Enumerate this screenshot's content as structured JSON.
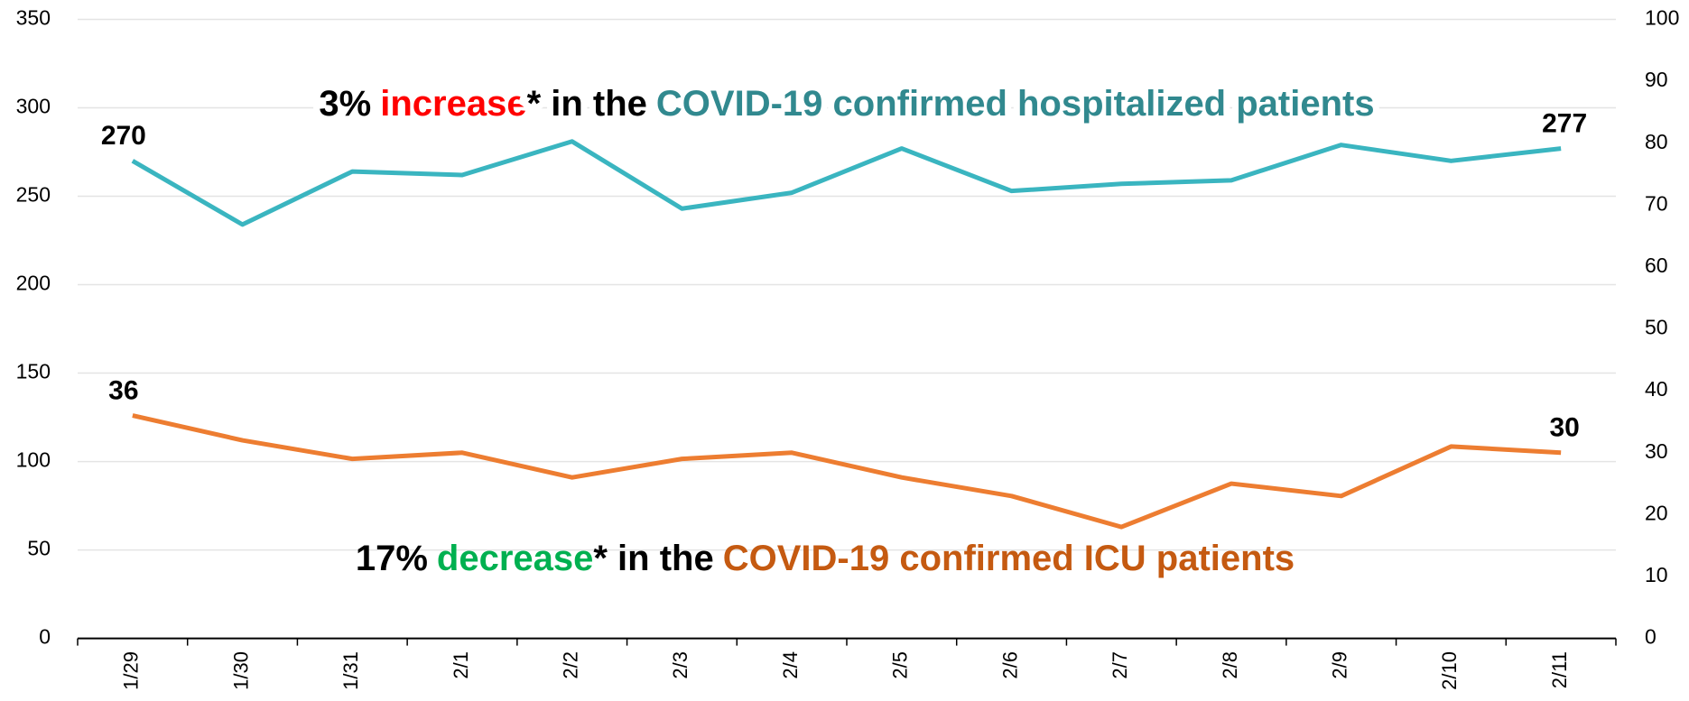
{
  "chart_data": {
    "type": "line",
    "categories": [
      "1/29",
      "1/30",
      "1/31",
      "2/1",
      "2/2",
      "2/3",
      "2/4",
      "2/5",
      "2/6",
      "2/7",
      "2/8",
      "2/9",
      "2/10",
      "2/11"
    ],
    "series": [
      {
        "name": "COVID-19 confirmed hospitalized patients",
        "color": "#3ab5c0",
        "axis": "y",
        "values": [
          270,
          234,
          264,
          262,
          281,
          243,
          252,
          277,
          253,
          257,
          259,
          279,
          270,
          277
        ]
      },
      {
        "name": "COVID-19 confirmed ICU patients",
        "color": "#ed7d31",
        "axis": "y2",
        "values": [
          36,
          32,
          29,
          30,
          26,
          29,
          30,
          26,
          23,
          18,
          25,
          23,
          31,
          30
        ]
      }
    ],
    "ylim": [
      0,
      350
    ],
    "yticks": [
      0,
      50,
      100,
      150,
      200,
      250,
      300,
      350
    ],
    "y2lim": [
      0,
      100
    ],
    "y2ticks": [
      0,
      10,
      20,
      30,
      40,
      50,
      60,
      70,
      80,
      90,
      100
    ],
    "grid": true,
    "annotations": [
      [
        {
          "text": "3%",
          "color": "#000000"
        },
        {
          "text": "increase",
          "color": "#ff0000"
        },
        {
          "text": "* in the",
          "color": "#000000"
        },
        {
          "text": "COVID-19 confirmed hospitalized patients",
          "color": "#31898f"
        }
      ],
      [
        {
          "text": "17%",
          "color": "#000000"
        },
        {
          "text": "decrease",
          "color": "#00b050"
        },
        {
          "text": "* in the",
          "color": "#000000"
        },
        {
          "text": "COVID-19 confirmed ICU patients",
          "color": "#c55a11"
        }
      ]
    ]
  }
}
